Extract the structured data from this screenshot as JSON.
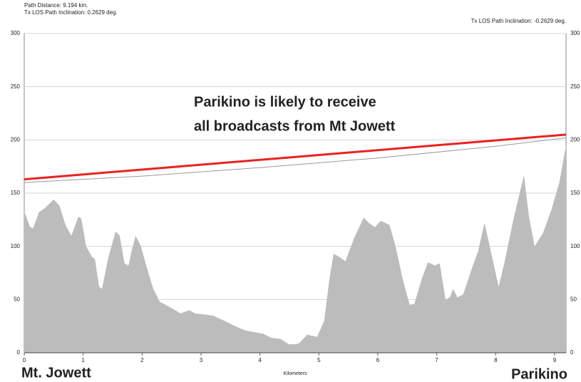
{
  "chart_data": {
    "type": "area",
    "header_left": [
      "Path Distance: 9.194 km.",
      "Tx LOS Path Inclination: 0.2629 deg."
    ],
    "header_right": "Tx LOS Path Inclination: -0.2629 deg.",
    "annotation": [
      "Parikino is likely to receive",
      "all broadcasts from Mt Jowett"
    ],
    "annotation_color": "#e8231f",
    "left_site": "Mt. Jowett",
    "right_site": "Parikino",
    "x_label": "Kilometers",
    "xlim": [
      0,
      9.194
    ],
    "xticks": [
      0,
      1,
      2,
      3,
      4,
      5,
      6,
      7,
      8,
      9
    ],
    "ylim": [
      0,
      300
    ],
    "yticks": [
      0,
      50,
      100,
      150,
      200,
      250,
      300
    ],
    "grid": true,
    "series": [
      {
        "type": "area",
        "color": "#bcbcbc",
        "x": [
          0,
          0.1,
          0.15,
          0.25,
          0.35,
          0.5,
          0.6,
          0.7,
          0.8,
          0.92,
          0.97,
          1.05,
          1.15,
          1.2,
          1.27,
          1.32,
          1.42,
          1.55,
          1.62,
          1.7,
          1.77,
          1.82,
          1.89,
          1.98,
          2.08,
          2.19,
          2.3,
          2.5,
          2.65,
          2.8,
          2.9,
          3.2,
          3.4,
          3.58,
          3.75,
          3.94,
          4.05,
          4.2,
          4.35,
          4.49,
          4.6,
          4.67,
          4.8,
          4.97,
          5.09,
          5.18,
          5.25,
          5.35,
          5.45,
          5.6,
          5.76,
          5.85,
          5.95,
          6.05,
          6.2,
          6.3,
          6.42,
          6.54,
          6.62,
          6.75,
          6.85,
          6.97,
          7.05,
          7.15,
          7.22,
          7.28,
          7.35,
          7.45,
          7.6,
          7.7,
          7.81,
          7.9,
          8.05,
          8.15,
          8.3,
          8.48,
          8.56,
          8.66,
          8.8,
          8.95,
          9.08,
          9.194
        ],
        "values": [
          133,
          118,
          117,
          132,
          136,
          144,
          138,
          120,
          110,
          128,
          126,
          100,
          90,
          88,
          62,
          60,
          88,
          114,
          110,
          84,
          82,
          95,
          110,
          100,
          80,
          60,
          48,
          42,
          37,
          40,
          37,
          35,
          30,
          25,
          21,
          19,
          18,
          14,
          13,
          8,
          8,
          9,
          17,
          15,
          30,
          70,
          93,
          90,
          86,
          108,
          127,
          122,
          118,
          124,
          120,
          100,
          70,
          45,
          46,
          70,
          85,
          82,
          84,
          50,
          52,
          60,
          52,
          55,
          80,
          95,
          122,
          100,
          62,
          85,
          125,
          167,
          130,
          100,
          112,
          135,
          160,
          195
        ]
      },
      {
        "type": "line",
        "color": "#9a9a9a",
        "width": 1,
        "x": [
          0,
          2,
          4,
          6,
          8,
          9.194
        ],
        "values": [
          160,
          166,
          174,
          183,
          194,
          202
        ]
      },
      {
        "type": "line",
        "color": "#e8231f",
        "width": 3,
        "x": [
          0,
          9.194
        ],
        "values": [
          163,
          205
        ]
      }
    ]
  }
}
